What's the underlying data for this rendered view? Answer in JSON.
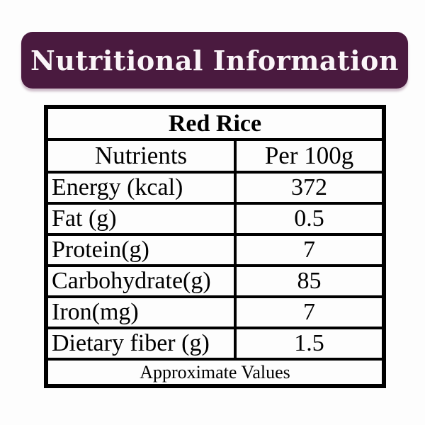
{
  "colors": {
    "banner-bg": "#4a1a3f",
    "banner-text": "#faf5f8",
    "table-border": "#000000",
    "table-text": "#000000",
    "page-bg": "#fdfdfd"
  },
  "banner": {
    "title": "Nutritional Information"
  },
  "table": {
    "title": "Red Rice",
    "columns": {
      "nutrient": "Nutrients",
      "amount": "Per 100g"
    },
    "rows": [
      {
        "nutrient": "Energy (kcal)",
        "value": "372"
      },
      {
        "nutrient": "Fat (g)",
        "value": "0.5"
      },
      {
        "nutrient": "Protein(g)",
        "value": "7"
      },
      {
        "nutrient": "Carbohydrate(g)",
        "value": "85"
      },
      {
        "nutrient": "Iron(mg)",
        "value": "7"
      },
      {
        "nutrient": "Dietary fiber (g)",
        "value": "1.5"
      }
    ],
    "footer": "Approximate Values"
  }
}
